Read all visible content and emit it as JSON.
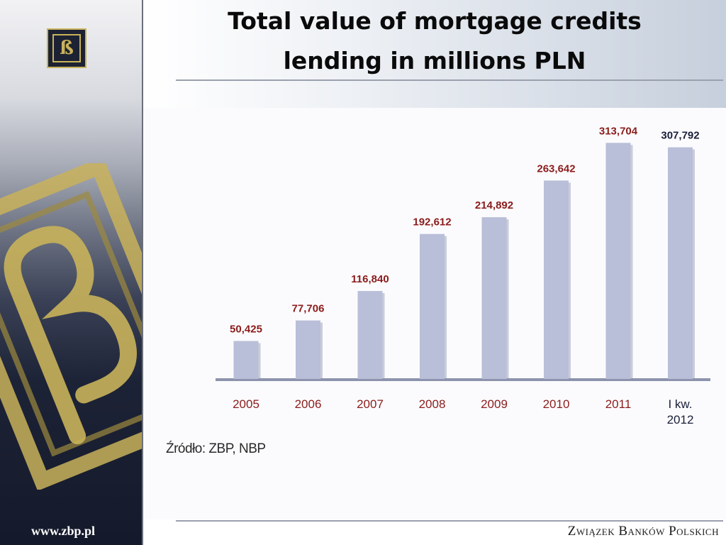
{
  "slide": {
    "title_line1": "Total value of mortgage credits",
    "title_line2": "lending in millions PLN",
    "source": "Źródło: ZBP, NBP",
    "website": "www.zbp.pl",
    "organization": "Związek Banków Polskich",
    "logo_letter": "ß"
  },
  "colors": {
    "bar": "#b9bfd8",
    "bar_shadow": "#8d93ad",
    "value_label": "#8c1c1c",
    "last_value_label": "#1a1f3a",
    "category_label": "#8c1c1c",
    "last_category_label": "#1a1f3a",
    "emblem_gold": "#c9b25a"
  },
  "chart_data": {
    "type": "bar",
    "categories": [
      "2005",
      "2006",
      "2007",
      "2008",
      "2009",
      "2010",
      "2011",
      "I kw.\n2012"
    ],
    "values": [
      50425,
      77706,
      116840,
      192612,
      214892,
      263642,
      313704,
      307792
    ],
    "value_labels": [
      "50,425",
      "77,706",
      "116,840",
      "192,612",
      "214,892",
      "263,642",
      "313,704",
      "307,792"
    ],
    "title": "",
    "xlabel": "",
    "ylabel": "",
    "ylim": [
      0,
      330000
    ],
    "grid": false,
    "legend": "none"
  }
}
